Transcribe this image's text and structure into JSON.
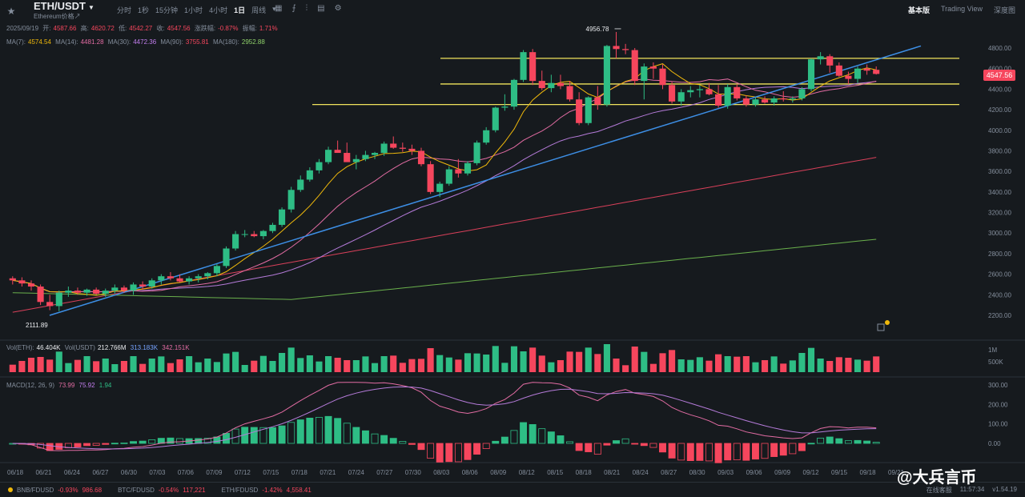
{
  "header": {
    "pair": "ETH/USDT",
    "subtitle": "Ethereum价格↗",
    "intervals": [
      "分时",
      "1秒",
      "15分钟",
      "1小时",
      "4小时",
      "1日",
      "周线"
    ],
    "active_interval": "1日",
    "views": [
      "基本版",
      "Trading View",
      "深度图"
    ],
    "active_view": "基本版"
  },
  "ohlc": {
    "date": "2025/09/19",
    "open_label": "开:",
    "open": "4587.66",
    "high_label": "高:",
    "high": "4620.72",
    "low_label": "低:",
    "low": "4542.27",
    "close_label": "收:",
    "close": "4547.56",
    "chg_label": "涨跌幅:",
    "chg": "-0.87%",
    "amp_label": "振幅:",
    "amp": "1.71%"
  },
  "ma": {
    "ma7_label": "MA(7):",
    "ma7": "4574.54",
    "ma14_label": "MA(14):",
    "ma14": "4481.28",
    "ma30_label": "MA(30):",
    "ma30": "4472.36",
    "ma90_label": "MA(90):",
    "ma90": "3755.81",
    "ma180_label": "MA(180):",
    "ma180": "2952.88"
  },
  "volume": {
    "eth_label": "Vol(ETH):",
    "eth": "46.404K",
    "usdt_label": "Vol(USDT)",
    "usdt": "212.766M",
    "v1": "313.183K",
    "v2": "342.151K",
    "axis": [
      "1M",
      "500K"
    ]
  },
  "macd": {
    "label": "MACD(12, 26, 9)",
    "dif": "73.99",
    "dea": "75.92",
    "hist": "1.94",
    "axis": [
      "300.00",
      "200.00",
      "100.00",
      "0.00"
    ]
  },
  "price_axis": [
    "4800.00",
    "4600.00",
    "4400.00",
    "4200.00",
    "4000.00",
    "3800.00",
    "3600.00",
    "3400.00",
    "3200.00",
    "3000.00",
    "2800.00",
    "2600.00",
    "2400.00",
    "2200.00"
  ],
  "current_price": "4547.56",
  "annotations": {
    "high": "4956.78",
    "low": "2111.89"
  },
  "dates": [
    "06/18",
    "06/21",
    "06/24",
    "06/27",
    "06/30",
    "07/03",
    "07/06",
    "07/09",
    "07/12",
    "07/15",
    "07/18",
    "07/21",
    "07/24",
    "07/27",
    "07/30",
    "08/03",
    "08/06",
    "08/09",
    "08/12",
    "08/15",
    "08/18",
    "08/21",
    "08/24",
    "08/27",
    "08/30",
    "09/03",
    "09/06",
    "09/09",
    "09/12",
    "09/15",
    "09/18",
    "09/21"
  ],
  "footer": {
    "t1_name": "BNB/FDUSD",
    "t1_chg": "-0.93%",
    "t1_price": "986.68",
    "t2_name": "BTC/FDUSD",
    "t2_chg": "-0.54%",
    "t2_price": "117,221",
    "t3_name": "ETH/FDUSD",
    "t3_chg": "-1.42%",
    "t3_price": "4,558.41",
    "online": "在线客服",
    "time": "11:57:34",
    "version": "v1.54.19"
  },
  "watermark": "@大兵言币",
  "colors": {
    "up": "#2ebd85",
    "down": "#f6465d",
    "bg": "#161a1e",
    "trend": "#3d8fe6",
    "hline": "#f0e35c"
  },
  "chart_data": {
    "type": "candlestick",
    "candles": [
      [
        2560,
        2580,
        2500,
        2540
      ],
      [
        2540,
        2570,
        2480,
        2510
      ],
      [
        2510,
        2540,
        2440,
        2480
      ],
      [
        2480,
        2500,
        2300,
        2330
      ],
      [
        2330,
        2400,
        2250,
        2290
      ],
      [
        2290,
        2440,
        2240,
        2420
      ],
      [
        2420,
        2480,
        2380,
        2440
      ],
      [
        2440,
        2470,
        2400,
        2420
      ],
      [
        2420,
        2460,
        2390,
        2450
      ],
      [
        2450,
        2470,
        2400,
        2410
      ],
      [
        2410,
        2460,
        2380,
        2440
      ],
      [
        2440,
        2500,
        2410,
        2470
      ],
      [
        2470,
        2490,
        2420,
        2440
      ],
      [
        2440,
        2520,
        2400,
        2500
      ],
      [
        2500,
        2530,
        2450,
        2480
      ],
      [
        2480,
        2560,
        2460,
        2540
      ],
      [
        2540,
        2600,
        2500,
        2580
      ],
      [
        2580,
        2620,
        2540,
        2560
      ],
      [
        2560,
        2600,
        2520,
        2530
      ],
      [
        2530,
        2580,
        2500,
        2560
      ],
      [
        2560,
        2600,
        2520,
        2580
      ],
      [
        2580,
        2620,
        2550,
        2610
      ],
      [
        2610,
        2700,
        2580,
        2680
      ],
      [
        2680,
        2870,
        2660,
        2850
      ],
      [
        2850,
        3020,
        2830,
        2990
      ],
      [
        2990,
        3030,
        2960,
        2990
      ],
      [
        2990,
        3020,
        2960,
        2970
      ],
      [
        2970,
        3030,
        2940,
        3020
      ],
      [
        3020,
        3100,
        3000,
        3080
      ],
      [
        3080,
        3250,
        3060,
        3230
      ],
      [
        3230,
        3450,
        3200,
        3420
      ],
      [
        3420,
        3560,
        3400,
        3520
      ],
      [
        3520,
        3640,
        3500,
        3610
      ],
      [
        3610,
        3720,
        3580,
        3690
      ],
      [
        3690,
        3840,
        3670,
        3810
      ],
      [
        3810,
        3900,
        3780,
        3780
      ],
      [
        3780,
        3880,
        3700,
        3690
      ],
      [
        3690,
        3760,
        3620,
        3720
      ],
      [
        3720,
        3800,
        3700,
        3760
      ],
      [
        3760,
        3790,
        3720,
        3780
      ],
      [
        3780,
        3890,
        3750,
        3870
      ],
      [
        3870,
        3940,
        3820,
        3830
      ],
      [
        3830,
        3880,
        3790,
        3820
      ],
      [
        3820,
        3860,
        3760,
        3800
      ],
      [
        3800,
        3830,
        3650,
        3670
      ],
      [
        3670,
        3700,
        3380,
        3400
      ],
      [
        3400,
        3500,
        3350,
        3480
      ],
      [
        3480,
        3650,
        3460,
        3620
      ],
      [
        3620,
        3720,
        3540,
        3580
      ],
      [
        3580,
        3700,
        3560,
        3680
      ],
      [
        3680,
        3900,
        3660,
        3880
      ],
      [
        3880,
        4030,
        3860,
        4000
      ],
      [
        4000,
        4230,
        3980,
        4220
      ],
      [
        4220,
        4350,
        4190,
        4230
      ],
      [
        4230,
        4500,
        4200,
        4490
      ],
      [
        4490,
        4780,
        4470,
        4760
      ],
      [
        4760,
        4790,
        4440,
        4480
      ],
      [
        4480,
        4580,
        4390,
        4410
      ],
      [
        4410,
        4540,
        4370,
        4460
      ],
      [
        4460,
        4540,
        4400,
        4430
      ],
      [
        4430,
        4480,
        4280,
        4300
      ],
      [
        4300,
        4370,
        4050,
        4070
      ],
      [
        4070,
        4330,
        4050,
        4320
      ],
      [
        4320,
        4430,
        4200,
        4250
      ],
      [
        4250,
        4830,
        4230,
        4820
      ],
      [
        4820,
        4956,
        4700,
        4790
      ],
      [
        4790,
        4840,
        4740,
        4780
      ],
      [
        4780,
        4800,
        4440,
        4480
      ],
      [
        4480,
        4650,
        4300,
        4620
      ],
      [
        4620,
        4660,
        4500,
        4600
      ],
      [
        4600,
        4640,
        4400,
        4440
      ],
      [
        4440,
        4470,
        4260,
        4280
      ],
      [
        4280,
        4400,
        4240,
        4370
      ],
      [
        4370,
        4430,
        4320,
        4390
      ],
      [
        4390,
        4440,
        4320,
        4400
      ],
      [
        4400,
        4460,
        4340,
        4350
      ],
      [
        4350,
        4440,
        4220,
        4240
      ],
      [
        4240,
        4450,
        4210,
        4420
      ],
      [
        4420,
        4450,
        4290,
        4310
      ],
      [
        4310,
        4340,
        4230,
        4250
      ],
      [
        4250,
        4320,
        4230,
        4300
      ],
      [
        4300,
        4330,
        4260,
        4270
      ],
      [
        4270,
        4330,
        4240,
        4310
      ],
      [
        4310,
        4380,
        4280,
        4300
      ],
      [
        4300,
        4330,
        4270,
        4310
      ],
      [
        4310,
        4420,
        4290,
        4400
      ],
      [
        4400,
        4700,
        4380,
        4690
      ],
      [
        4690,
        4760,
        4640,
        4720
      ],
      [
        4720,
        4740,
        4560,
        4630
      ],
      [
        4630,
        4660,
        4520,
        4530
      ],
      [
        4530,
        4570,
        4450,
        4500
      ],
      [
        4500,
        4620,
        4460,
        4600
      ],
      [
        4600,
        4640,
        4540,
        4580
      ],
      [
        4588,
        4621,
        4542,
        4548
      ]
    ],
    "trendline": [
      [
        2111.89,
        2200
      ],
      [
        4956.78,
        4820
      ]
    ],
    "hlines": [
      4700,
      4450,
      4250
    ]
  }
}
